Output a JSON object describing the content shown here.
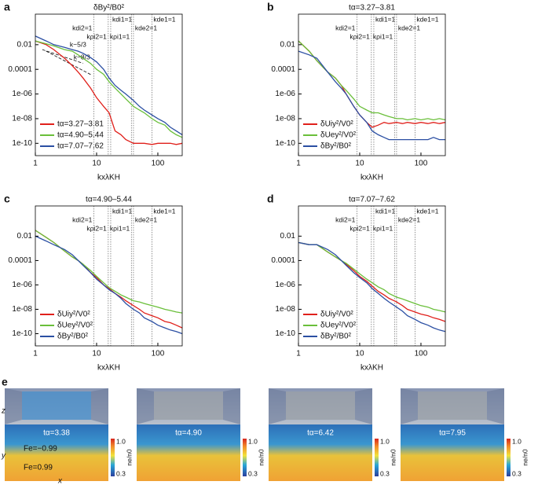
{
  "chart_data": [
    {
      "type": "line",
      "panel": "a",
      "title": "δBy²/B0²",
      "x_label": "kxλKH",
      "xscale": "log",
      "yscale": "log",
      "xlim": [
        1,
        250
      ],
      "ylim": [
        1e-11,
        3
      ],
      "xticks": [
        1,
        10,
        100
      ],
      "yticks": [
        {
          "value": 1e-10,
          "label": "1e-10"
        },
        {
          "value": 1e-08,
          "label": "1e-08"
        },
        {
          "value": 1e-06,
          "label": "1e-06"
        },
        0.0001,
        0.01
      ],
      "legend": "lower left",
      "x": [
        1,
        1.5,
        2,
        3,
        4,
        5,
        6,
        8,
        10,
        13,
        16,
        20,
        25,
        30,
        40,
        50,
        60,
        80,
        100,
        130,
        160,
        200,
        250
      ],
      "series": [
        {
          "name": "tα=3.27–3.81",
          "color": "#e0201b",
          "values": [
            0.02,
            0.01,
            0.004,
            0.0008,
            0.0002,
            6e-05,
            2e-05,
            3e-06,
            5e-07,
            1e-07,
            3e-08,
            1e-09,
            5e-10,
            2e-10,
            1e-10,
            1e-10,
            1e-10,
            8e-11,
            1e-10,
            1e-10,
            1e-10,
            8e-11,
            1e-10
          ]
        },
        {
          "name": "tα=4.90–5.44",
          "color": "#6abf3a",
          "values": [
            0.02,
            0.012,
            0.008,
            0.004,
            0.003,
            0.0015,
            0.0008,
            0.0003,
            0.0001,
            4e-05,
            1e-05,
            3e-06,
            1e-06,
            4e-07,
            1e-07,
            5e-08,
            3e-08,
            1e-08,
            5e-09,
            3e-09,
            1e-09,
            5e-10,
            3e-10
          ]
        },
        {
          "name": "tα=7.07–7.62",
          "color": "#2b4fa3",
          "values": [
            0.05,
            0.02,
            0.01,
            0.006,
            0.004,
            0.003,
            0.002,
            0.0009,
            0.0004,
            0.0001,
            2e-05,
            5e-06,
            2e-06,
            1e-06,
            3e-07,
            1e-07,
            5e-08,
            2e-08,
            1e-08,
            5e-09,
            2e-09,
            1e-09,
            5e-10
          ]
        }
      ],
      "guides": [
        {
          "label": "k−5/3",
          "x": [
            1.3,
            6
          ],
          "values": [
            0.004,
            0.00031
          ]
        },
        {
          "label": "k−8/3",
          "x": [
            1.5,
            8
          ],
          "values": [
            0.003,
            3.8e-05
          ]
        }
      ],
      "annotations": [
        {
          "label": "kdi2=1",
          "x": 9
        },
        {
          "label": "kdi1=1",
          "x": 17
        },
        {
          "label": "kρi2=1",
          "x": 15.5
        },
        {
          "label": "kde2=1",
          "x": 40
        },
        {
          "label": "kρi1=1",
          "x": 37
        },
        {
          "label": "kde1=1",
          "x": 80
        }
      ]
    },
    {
      "type": "line",
      "panel": "b",
      "title": "tα=3.27–3.81",
      "x_label": "kxλKH",
      "xscale": "log",
      "yscale": "log",
      "xlim": [
        1,
        250
      ],
      "ylim": [
        1e-11,
        3
      ],
      "xticks": [
        1,
        10,
        100
      ],
      "yticks": [
        {
          "value": 1e-10,
          "label": "1e-10"
        },
        {
          "value": 1e-08,
          "label": "1e-08"
        },
        {
          "value": 1e-06,
          "label": "1e-06"
        },
        0.0001,
        0.01
      ],
      "legend": "lower left",
      "x": [
        1,
        1.5,
        2,
        3,
        4,
        5,
        6,
        8,
        10,
        13,
        16,
        20,
        25,
        30,
        40,
        50,
        60,
        80,
        100,
        130,
        160,
        200,
        250
      ],
      "series": [
        {
          "name": "δUiy²/V0²",
          "color": "#e0201b",
          "values": [
            0.02,
            0.003,
            0.0005,
            6e-05,
            2e-05,
            5e-06,
            1e-06,
            1e-07,
            2e-08,
            5e-09,
            2e-09,
            3e-09,
            5e-09,
            4e-09,
            5e-09,
            4e-09,
            5e-09,
            4e-09,
            5e-09,
            4e-09,
            5e-09,
            4e-09,
            5e-09
          ]
        },
        {
          "name": "δUey²/V0²",
          "color": "#6abf3a",
          "values": [
            0.02,
            0.003,
            0.0005,
            6e-05,
            2e-05,
            5e-06,
            2e-06,
            4e-07,
            1e-07,
            5e-08,
            3e-08,
            3e-08,
            2e-08,
            1.5e-08,
            1e-08,
            1e-08,
            8e-09,
            1e-08,
            8e-09,
            1e-08,
            8e-09,
            1e-08,
            8e-09
          ]
        },
        {
          "name": "δBy²/B0²",
          "color": "#2b4fa3",
          "values": [
            0.003,
            0.0015,
            0.0008,
            6e-05,
            1e-05,
            3e-06,
            1e-06,
            1e-07,
            2e-08,
            5e-09,
            1e-09,
            5e-10,
            3e-10,
            2e-10,
            2e-10,
            2e-10,
            2e-10,
            2e-10,
            2e-10,
            2e-10,
            3e-10,
            2e-10,
            2e-10
          ]
        }
      ],
      "annotations": [
        {
          "label": "kdi2=1",
          "x": 9
        },
        {
          "label": "kdi1=1",
          "x": 17
        },
        {
          "label": "kρi2=1",
          "x": 15.5
        },
        {
          "label": "kde2=1",
          "x": 40
        },
        {
          "label": "kρi1=1",
          "x": 37
        },
        {
          "label": "kde1=1",
          "x": 80
        }
      ]
    },
    {
      "type": "line",
      "panel": "c",
      "title": "tα=4.90–5.44",
      "x_label": "kxλKH",
      "xscale": "log",
      "yscale": "log",
      "xlim": [
        1,
        250
      ],
      "ylim": [
        1e-11,
        3
      ],
      "xticks": [
        1,
        10,
        100
      ],
      "yticks": [
        {
          "value": 1e-10,
          "label": "1e-10"
        },
        {
          "value": 1e-08,
          "label": "1e-08"
        },
        {
          "value": 1e-06,
          "label": "1e-06"
        },
        0.0001,
        0.01
      ],
      "legend": "lower left",
      "x": [
        1,
        1.5,
        2,
        3,
        4,
        5,
        6,
        8,
        10,
        13,
        16,
        20,
        25,
        30,
        40,
        50,
        60,
        80,
        100,
        130,
        160,
        200,
        250
      ],
      "series": [
        {
          "name": "δUiy²/V0²",
          "color": "#e0201b",
          "values": [
            0.03,
            0.008,
            0.003,
            0.0006,
            0.0002,
            0.0001,
            5e-05,
            1e-05,
            4e-06,
            1e-06,
            5e-07,
            2e-07,
            1e-07,
            5e-08,
            2e-08,
            1e-08,
            5e-09,
            3e-09,
            2e-09,
            1e-09,
            8e-10,
            5e-10,
            3e-10
          ]
        },
        {
          "name": "δUey²/V0²",
          "color": "#6abf3a",
          "values": [
            0.03,
            0.008,
            0.003,
            0.0006,
            0.0002,
            0.0001,
            5e-05,
            1.5e-05,
            5e-06,
            1.5e-06,
            6e-07,
            3e-07,
            1.5e-07,
            1e-07,
            5e-08,
            4e-08,
            3e-08,
            2e-08,
            1.5e-08,
            1e-08,
            8e-09,
            6e-09,
            5e-09
          ]
        },
        {
          "name": "δBy²/B0²",
          "color": "#2b4fa3",
          "values": [
            0.01,
            0.004,
            0.002,
            0.0008,
            0.0003,
            0.0001,
            4e-05,
            1e-05,
            3e-06,
            1e-06,
            4e-07,
            2e-07,
            8e-08,
            3e-08,
            1e-08,
            5e-09,
            2e-09,
            1e-09,
            5e-10,
            3e-10,
            2e-10,
            1.5e-10,
            1e-10
          ]
        }
      ],
      "annotations": [
        {
          "label": "kdi2=1",
          "x": 9
        },
        {
          "label": "kdi1=1",
          "x": 17
        },
        {
          "label": "kρi2=1",
          "x": 15.5
        },
        {
          "label": "kde2=1",
          "x": 40
        },
        {
          "label": "kρi1=1",
          "x": 37
        },
        {
          "label": "kde1=1",
          "x": 80
        }
      ]
    },
    {
      "type": "line",
      "panel": "d",
      "title": "tα=7.07–7.62",
      "x_label": "kxλKH",
      "xscale": "log",
      "yscale": "log",
      "xlim": [
        1,
        250
      ],
      "ylim": [
        1e-11,
        3
      ],
      "xticks": [
        1,
        10,
        100
      ],
      "yticks": [
        {
          "value": 1e-10,
          "label": "1e-10"
        },
        {
          "value": 1e-08,
          "label": "1e-08"
        },
        {
          "value": 1e-06,
          "label": "1e-06"
        },
        0.0001,
        0.01
      ],
      "legend": "lower left",
      "x": [
        1,
        1.5,
        2,
        3,
        4,
        5,
        6,
        8,
        10,
        13,
        16,
        20,
        25,
        30,
        40,
        50,
        60,
        80,
        100,
        130,
        160,
        200,
        250
      ],
      "series": [
        {
          "name": "δUiy²/V0²",
          "color": "#e0201b",
          "values": [
            0.003,
            0.002,
            0.002,
            0.0005,
            0.0002,
            0.0001,
            5e-05,
            1.5e-05,
            5e-06,
            2e-06,
            8e-07,
            3e-07,
            1.5e-07,
            8e-08,
            4e-08,
            2e-08,
            1e-08,
            6e-09,
            4e-09,
            3e-09,
            2e-09,
            1.5e-09,
            1e-09
          ]
        },
        {
          "name": "δUey²/V0²",
          "color": "#6abf3a",
          "values": [
            0.003,
            0.002,
            0.002,
            0.0005,
            0.0002,
            0.0001,
            6e-05,
            2e-05,
            8e-06,
            3e-06,
            1.5e-06,
            7e-07,
            4e-07,
            2e-07,
            1e-07,
            7e-08,
            5e-08,
            3e-08,
            2e-08,
            1.5e-08,
            1e-08,
            8e-09,
            6e-09
          ]
        },
        {
          "name": "δBy²/B0²",
          "color": "#2b4fa3",
          "values": [
            0.003,
            0.002,
            0.002,
            0.0008,
            0.0003,
            0.0001,
            4e-05,
            1e-05,
            4e-06,
            1.5e-06,
            5e-07,
            2e-07,
            8e-08,
            4e-08,
            1.5e-08,
            7e-09,
            3e-09,
            1.5e-09,
            8e-10,
            5e-10,
            3e-10,
            2e-10,
            1.5e-10
          ]
        }
      ],
      "annotations": [
        {
          "label": "kdi2=1",
          "x": 9
        },
        {
          "label": "kdi1=1",
          "x": 17
        },
        {
          "label": "kρi2=1",
          "x": 15.5
        },
        {
          "label": "kde2=1",
          "x": 40
        },
        {
          "label": "kρi1=1",
          "x": 37
        },
        {
          "label": "kde1=1",
          "x": 80
        }
      ]
    }
  ],
  "panel_e": {
    "label": "e",
    "boxes": [
      {
        "time": "tα=3.38"
      },
      {
        "time": "tα=4.90"
      },
      {
        "time": "tα=6.42"
      },
      {
        "time": "tα=7.95"
      }
    ],
    "colorbar": {
      "max": "1.0",
      "min": "0.3",
      "label": "ne/n0"
    },
    "axes": {
      "z": "z",
      "y": "y",
      "x": "x"
    },
    "contours": [
      "Fe=−0.99",
      "Fe=0.99"
    ]
  }
}
